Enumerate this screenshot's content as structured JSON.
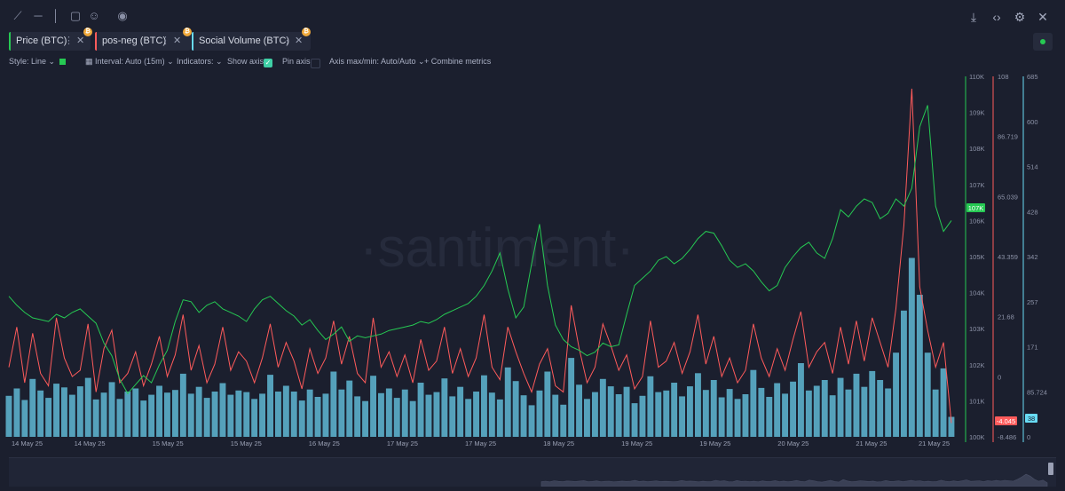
{
  "toolbar": {
    "left_icons": [
      "line-tool-icon",
      "horizontal-line-icon",
      "vertical-line-icon",
      "note-icon",
      "emoji-icon",
      "eye-icon"
    ],
    "right_icons": [
      "download-icon",
      "embed-code-icon",
      "settings-gear-icon",
      "close-icon"
    ]
  },
  "metrics": [
    {
      "label": "Price (BTC)",
      "color": "#26c953",
      "badge": "₿"
    },
    {
      "label": "pos-neg (BTC)",
      "color": "#ff5b5b",
      "badge": "₿"
    },
    {
      "label": "Social Volume (BTC)",
      "color": "#68dbf4",
      "badge": "₿"
    }
  ],
  "settings": {
    "style": "Style: Line",
    "interval": "Interval: Auto (15m)",
    "indicators": "Indicators:",
    "show_axis": "Show axis",
    "pin_axis": "Pin axis",
    "axis_maxmin": "Axis max/min: Auto/Auto",
    "combine": "Combine metrics"
  },
  "watermark": "·santiment·",
  "chart_data": {
    "type": "line",
    "x_ticks": [
      "14 May 25",
      "14 May 25",
      "15 May 25",
      "15 May 25",
      "16 May 25",
      "17 May 25",
      "17 May 25",
      "18 May 25",
      "19 May 25",
      "19 May 25",
      "20 May 25",
      "21 May 25",
      "21 May 25"
    ],
    "price_axis": {
      "ticks": [
        "110K",
        "109K",
        "108K",
        "107K",
        "106K",
        "105K",
        "104K",
        "103K",
        "102K",
        "101K",
        "100K"
      ],
      "min": 100000,
      "max": 110000,
      "current_label": "107K",
      "color": "#26c953"
    },
    "posneg_axis": {
      "ticks": [
        "108",
        "86.719",
        "65.039",
        "43.359",
        "21.68",
        "0",
        "-8.486"
      ],
      "min": -8.486,
      "max": 108,
      "current_label": "-4.045",
      "color": "#ff5b5b"
    },
    "social_axis": {
      "ticks": [
        "685",
        "600",
        "514",
        "428",
        "342",
        "257",
        "171",
        "85.724",
        "0"
      ],
      "min": 0,
      "max": 685,
      "current_label": "38",
      "color": "#68dbf4"
    },
    "series": [
      {
        "name": "Price (BTC)",
        "color": "#26c953",
        "values": [
          103900,
          103650,
          103450,
          103300,
          103250,
          103200,
          103400,
          103300,
          103450,
          103550,
          103350,
          103150,
          102600,
          102250,
          101600,
          101200,
          101450,
          101700,
          101500,
          102000,
          102400,
          103200,
          103800,
          103750,
          103450,
          103650,
          103750,
          103550,
          103450,
          103350,
          103200,
          103550,
          103800,
          103900,
          103700,
          103500,
          103350,
          103100,
          103250,
          102950,
          102700,
          102850,
          103050,
          102650,
          102800,
          102750,
          102800,
          102850,
          102950,
          103000,
          103050,
          103100,
          103200,
          103150,
          103250,
          103400,
          103500,
          103600,
          103700,
          103900,
          104200,
          104600,
          105100,
          104100,
          103300,
          103600,
          104800,
          105900,
          104200,
          103100,
          102700,
          102500,
          102400,
          102250,
          102350,
          102600,
          102500,
          102550,
          103400,
          104200,
          104400,
          104600,
          104900,
          105000,
          104800,
          104950,
          105200,
          105500,
          105700,
          105650,
          105300,
          104900,
          104700,
          104800,
          104600,
          104300,
          104050,
          104200,
          104700,
          105000,
          105250,
          105400,
          105100,
          104950,
          105500,
          106300,
          106100,
          106400,
          106600,
          106500,
          106050,
          106200,
          106600,
          106400,
          106900,
          108600,
          109200,
          106400,
          105700,
          106000
        ]
      },
      {
        "name": "pos-neg (BTC)",
        "color": "#ff5b5b",
        "values": [
          14,
          27,
          9,
          25,
          12,
          8,
          30,
          17,
          11,
          13,
          28,
          6,
          20,
          26,
          9,
          12,
          19,
          8,
          15,
          24,
          11,
          18,
          31,
          13,
          21,
          9,
          15,
          27,
          13,
          19,
          16,
          9,
          17,
          28,
          14,
          22,
          16,
          7,
          20,
          12,
          17,
          29,
          15,
          24,
          12,
          9,
          30,
          14,
          19,
          11,
          18,
          9,
          23,
          13,
          16,
          27,
          12,
          20,
          11,
          17,
          31,
          14,
          10,
          27,
          19,
          12,
          6,
          15,
          20,
          8,
          6,
          34,
          20,
          9,
          14,
          28,
          21,
          13,
          18,
          7,
          11,
          29,
          14,
          16,
          22,
          12,
          19,
          31,
          15,
          24,
          11,
          17,
          9,
          13,
          28,
          17,
          11,
          20,
          13,
          23,
          32,
          14,
          19,
          22,
          12,
          27,
          15,
          29,
          16,
          30,
          22,
          14,
          33,
          60,
          104,
          40,
          26,
          14,
          22,
          -4
        ]
      },
      {
        "name": "Social Volume (BTC)",
        "color": "#68dbf4",
        "values": [
          78,
          92,
          70,
          110,
          88,
          74,
          101,
          94,
          80,
          96,
          112,
          71,
          84,
          104,
          72,
          86,
          92,
          69,
          80,
          97,
          84,
          89,
          120,
          82,
          95,
          74,
          86,
          102,
          80,
          88,
          85,
          72,
          82,
          118,
          86,
          97,
          86,
          69,
          90,
          76,
          82,
          124,
          90,
          107,
          77,
          68,
          116,
          83,
          92,
          74,
          90,
          68,
          103,
          80,
          85,
          111,
          77,
          95,
          72,
          86,
          117,
          84,
          71,
          132,
          106,
          79,
          60,
          88,
          124,
          80,
          61,
          150,
          99,
          72,
          85,
          110,
          96,
          81,
          95,
          64,
          78,
          115,
          85,
          88,
          103,
          77,
          96,
          121,
          89,
          108,
          75,
          91,
          72,
          81,
          127,
          93,
          76,
          102,
          82,
          105,
          140,
          88,
          97,
          108,
          79,
          112,
          90,
          120,
          95,
          125,
          108,
          92,
          160,
          240,
          340,
          270,
          160,
          90,
          130,
          38
        ]
      }
    ]
  }
}
